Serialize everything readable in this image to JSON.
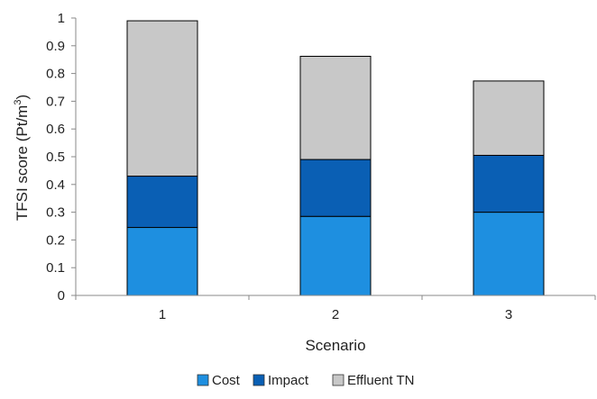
{
  "chart_data": {
    "type": "bar",
    "stacked": true,
    "categories": [
      "1",
      "2",
      "3"
    ],
    "series": [
      {
        "name": "Cost",
        "values": [
          0.245,
          0.285,
          0.3
        ],
        "color": "#1e8fe0"
      },
      {
        "name": "Impact",
        "values": [
          0.185,
          0.205,
          0.205
        ],
        "color": "#0a5fb4"
      },
      {
        "name": "Effluent TN",
        "values": [
          0.56,
          0.372,
          0.268
        ],
        "color": "#c8c8c8"
      }
    ],
    "xlabel": "Scenario",
    "ylabel_main": "TFSI score (Pt/m",
    "ylabel_sup": "3",
    "ylabel_end": ")",
    "ylim": [
      0,
      1
    ],
    "yticks": [
      "0",
      "0.1",
      "0.2",
      "0.3",
      "0.4",
      "0.5",
      "0.6",
      "0.7",
      "0.8",
      "0.9",
      "1"
    ],
    "grid": false,
    "legend_position": "bottom"
  }
}
